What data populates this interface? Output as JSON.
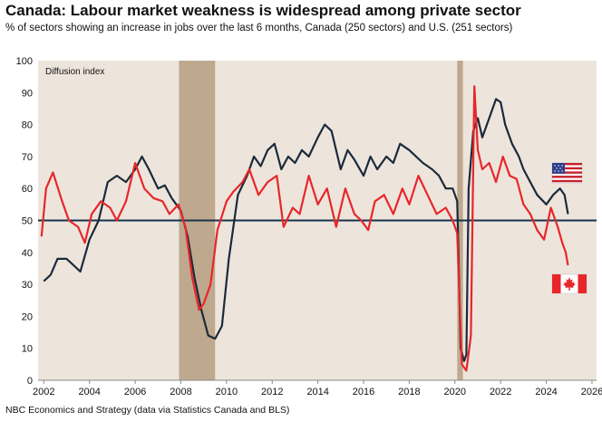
{
  "title": "Canada: Labour market weakness is widespread among private sector",
  "subtitle": "% of sectors showing an increase in jobs over the last 6 months, Canada (250 sectors) and U.S. (251 sectors)",
  "source": "NBC Economics and Strategy (data via Statistics Canada and BLS)",
  "colors": {
    "plot_background": "#ede5dc",
    "recession_band": "#bfa98e",
    "canada_line": "#e8262a",
    "us_line": "#1b2a3a",
    "reference_line": "#15324b"
  },
  "chart_data": {
    "type": "line",
    "ylabel": "Diffusion index",
    "ylim": [
      0,
      100
    ],
    "xlim": [
      2001.75,
      2026.2
    ],
    "y_ticks": [
      "0",
      "10",
      "20",
      "30",
      "40",
      "50",
      "60",
      "70",
      "80",
      "90",
      "100"
    ],
    "x_ticks": [
      "2002",
      "2004",
      "2006",
      "2008",
      "2010",
      "2012",
      "2014",
      "2016",
      "2018",
      "2020",
      "2022",
      "2024",
      "2026"
    ],
    "grid": false,
    "reference_line": 50,
    "recession_bands": [
      [
        2007.92,
        2009.5
      ],
      [
        2020.1,
        2020.35
      ]
    ],
    "legend": "flag icons at right edge: U.S. flag near U.S. line, Canadian flag near Canada line",
    "series": [
      {
        "name": "U.S.",
        "icon": "us-flag-icon",
        "x": [
          2002.0,
          2002.3,
          2002.6,
          2003.0,
          2003.3,
          2003.6,
          2004.0,
          2004.4,
          2004.8,
          2005.2,
          2005.6,
          2006.0,
          2006.3,
          2006.6,
          2007.0,
          2007.3,
          2007.6,
          2008.0,
          2008.3,
          2008.6,
          2008.9,
          2009.2,
          2009.5,
          2009.8,
          2010.1,
          2010.5,
          2010.9,
          2011.2,
          2011.5,
          2011.8,
          2012.1,
          2012.4,
          2012.7,
          2013.0,
          2013.3,
          2013.6,
          2014.0,
          2014.3,
          2014.6,
          2015.0,
          2015.3,
          2015.6,
          2016.0,
          2016.3,
          2016.6,
          2017.0,
          2017.3,
          2017.6,
          2018.0,
          2018.3,
          2018.6,
          2019.0,
          2019.3,
          2019.6,
          2019.9,
          2020.1,
          2020.25,
          2020.4,
          2020.5,
          2020.6,
          2020.8,
          2021.0,
          2021.2,
          2021.5,
          2021.8,
          2022.0,
          2022.2,
          2022.5,
          2022.8,
          2023.0,
          2023.3,
          2023.6,
          2024.0,
          2024.3,
          2024.6,
          2024.8,
          2024.95
        ],
        "values": [
          31,
          33,
          38,
          38,
          36,
          34,
          44,
          50,
          62,
          64,
          62,
          66,
          70,
          66,
          60,
          61,
          57,
          53,
          45,
          32,
          22,
          14,
          13,
          17,
          38,
          58,
          64,
          70,
          67,
          72,
          74,
          66,
          70,
          68,
          72,
          70,
          76,
          80,
          78,
          66,
          72,
          69,
          64,
          70,
          66,
          70,
          68,
          74,
          72,
          70,
          68,
          66,
          64,
          60,
          60,
          56,
          10,
          6,
          8,
          60,
          78,
          82,
          76,
          82,
          88,
          87,
          80,
          74,
          70,
          66,
          62,
          58,
          55,
          58,
          60,
          58,
          52
        ]
      },
      {
        "name": "Canada",
        "icon": "canada-flag-icon",
        "x": [
          2001.9,
          2002.1,
          2002.4,
          2002.8,
          2003.1,
          2003.5,
          2003.8,
          2004.1,
          2004.5,
          2004.9,
          2005.2,
          2005.6,
          2006.0,
          2006.4,
          2006.8,
          2007.2,
          2007.5,
          2007.9,
          2008.2,
          2008.5,
          2008.8,
          2009.0,
          2009.3,
          2009.6,
          2010.0,
          2010.3,
          2010.7,
          2011.0,
          2011.4,
          2011.8,
          2012.2,
          2012.5,
          2012.9,
          2013.2,
          2013.6,
          2014.0,
          2014.4,
          2014.8,
          2015.2,
          2015.6,
          2015.9,
          2016.2,
          2016.5,
          2016.9,
          2017.3,
          2017.7,
          2018.0,
          2018.4,
          2018.8,
          2019.2,
          2019.6,
          2019.9,
          2020.1,
          2020.3,
          2020.5,
          2020.7,
          2020.85,
          2021.0,
          2021.2,
          2021.5,
          2021.8,
          2022.1,
          2022.4,
          2022.7,
          2023.0,
          2023.3,
          2023.6,
          2023.9,
          2024.2,
          2024.5,
          2024.7,
          2024.85,
          2024.95
        ],
        "values": [
          45,
          60,
          65,
          56,
          50,
          48,
          43,
          52,
          56,
          54,
          50,
          56,
          68,
          60,
          57,
          56,
          52,
          55,
          48,
          32,
          22,
          24,
          30,
          47,
          56,
          59,
          62,
          66,
          58,
          62,
          64,
          48,
          54,
          52,
          64,
          55,
          60,
          48,
          60,
          52,
          50,
          47,
          56,
          58,
          52,
          60,
          55,
          64,
          58,
          52,
          54,
          50,
          46,
          5,
          3,
          14,
          92,
          72,
          66,
          68,
          62,
          70,
          64,
          63,
          55,
          52,
          47,
          44,
          54,
          48,
          43,
          40,
          36
        ]
      }
    ]
  }
}
